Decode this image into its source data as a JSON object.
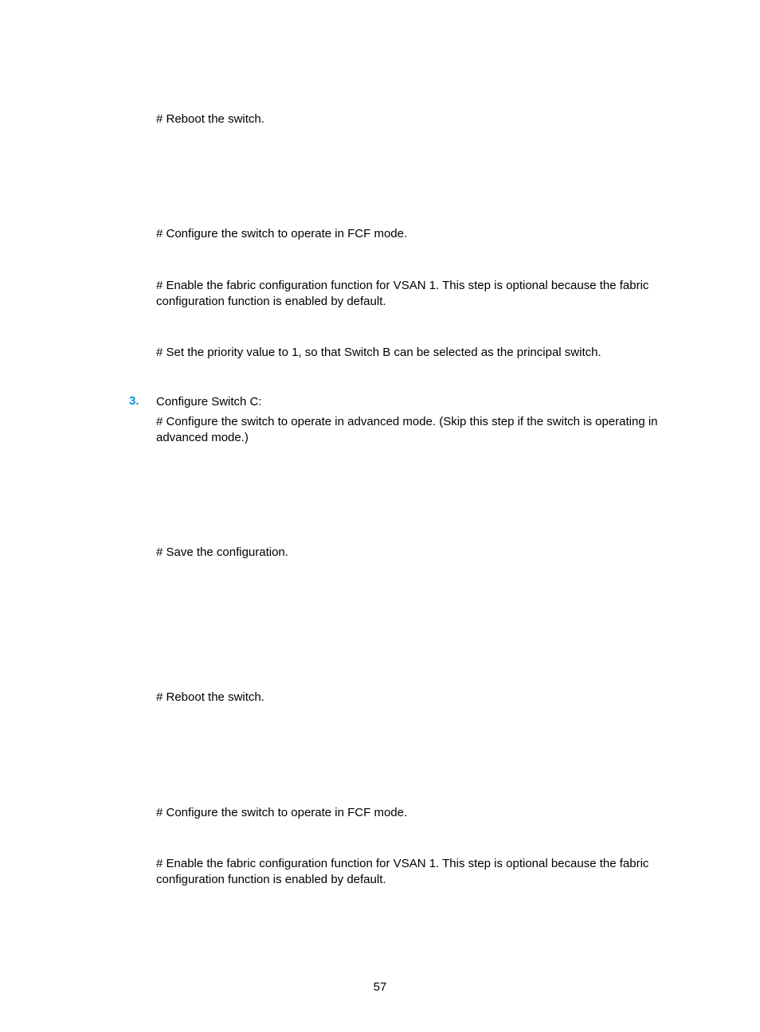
{
  "colors": {
    "accent": "#0096d6",
    "text": "#000000",
    "background": "#ffffff"
  },
  "typography": {
    "body_fontsize_pt": 11,
    "body_font_family": "Arial, Helvetica, sans-serif",
    "marker_bold": true
  },
  "page_number": "57",
  "blocks": [
    {
      "type": "para",
      "text": "# Reboot the switch."
    },
    {
      "type": "gap",
      "size": "xl"
    },
    {
      "type": "para",
      "text": "# Configure the switch to operate in FCF mode."
    },
    {
      "type": "gap",
      "size": "l"
    },
    {
      "type": "para",
      "text": "# Enable the fabric configuration function for VSAN 1. This step is optional because the fabric configuration function is enabled by default."
    },
    {
      "type": "gap",
      "size": "l"
    },
    {
      "type": "para",
      "text": "# Set the priority value to 1, so that Switch B can be selected as the principal switch."
    },
    {
      "type": "gap",
      "size": "m"
    },
    {
      "type": "num",
      "marker": "3.",
      "text": "Configure Switch C:"
    },
    {
      "type": "para",
      "text": "# Configure the switch to operate in advanced mode. (Skip this step if the switch is operating in advanced mode.)"
    },
    {
      "type": "gap",
      "size": "xl"
    },
    {
      "type": "para",
      "text": "# Save the configuration."
    },
    {
      "type": "gap",
      "size": "xl"
    },
    {
      "type": "gap",
      "size": "l"
    },
    {
      "type": "para",
      "text": "# Reboot the switch."
    },
    {
      "type": "gap",
      "size": "xl"
    },
    {
      "type": "para",
      "text": "# Configure the switch to operate in FCF mode."
    },
    {
      "type": "gap",
      "size": "l"
    },
    {
      "type": "para",
      "text": "# Enable the fabric configuration function for VSAN 1. This step is optional because the fabric configuration function is enabled by default."
    }
  ]
}
